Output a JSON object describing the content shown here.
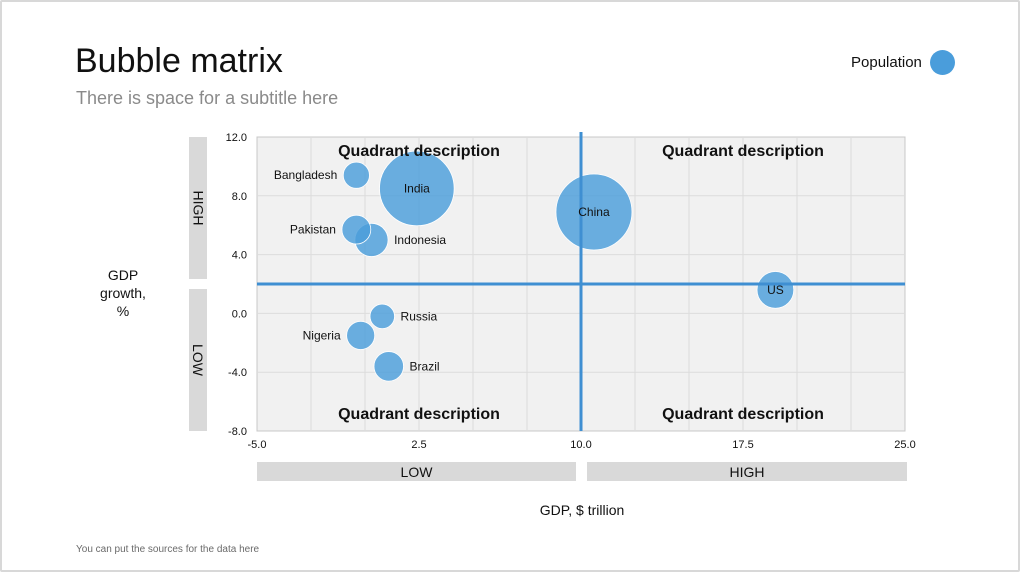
{
  "slide": {
    "title": "Bubble matrix",
    "subtitle": "There is space for a subtitle here",
    "source_note": "You can put the sources for the data here"
  },
  "legend": {
    "label": "Population",
    "color": "#4a9ddb"
  },
  "bands": {
    "y_high": "HIGH",
    "y_low": "LOW",
    "x_low": "LOW",
    "x_high": "HIGH"
  },
  "chart_data": {
    "type": "scatter",
    "subtype": "bubble",
    "title": "Bubble matrix",
    "subtitle": "There is space for a subtitle here",
    "xlabel": "GDP, $ trillion",
    "ylabel": "GDP\ngrowth,\n%",
    "xlim": [
      -5.0,
      25.0
    ],
    "ylim": [
      -8.0,
      12.0
    ],
    "x_ticks": [
      "-5.0",
      "2.5",
      "10.0",
      "17.5",
      "25.0"
    ],
    "y_ticks": [
      "12.0",
      "8.0",
      "4.0",
      "0.0",
      "-4.0",
      "-8.0"
    ],
    "x_tick_values": [
      -5.0,
      2.5,
      10.0,
      17.5,
      25.0
    ],
    "y_tick_values": [
      12.0,
      8.0,
      4.0,
      0.0,
      -4.0,
      -8.0
    ],
    "grid": true,
    "legend_position": "top-right",
    "bubble_color": "#4a9ddb",
    "divider_color": "#3f8fd2",
    "quadrant_split": {
      "x": 10.0,
      "y": 2.0
    },
    "quadrant_labels": [
      "Quadrant description",
      "Quadrant description",
      "Quadrant description",
      "Quadrant description"
    ],
    "series": [
      {
        "name": "Population",
        "points": [
          {
            "label": "Bangladesh",
            "x": -0.4,
            "y": 9.4,
            "size": 165,
            "label_pos": "left"
          },
          {
            "label": "India",
            "x": 2.4,
            "y": 8.5,
            "size": 1340,
            "label_pos": "center"
          },
          {
            "label": "Pakistan",
            "x": -0.4,
            "y": 5.7,
            "size": 200,
            "label_pos": "left"
          },
          {
            "label": "Indonesia",
            "x": 0.3,
            "y": 5.0,
            "size": 265,
            "label_pos": "right"
          },
          {
            "label": "China",
            "x": 10.6,
            "y": 6.9,
            "size": 1390,
            "label_pos": "center"
          },
          {
            "label": "US",
            "x": 19.0,
            "y": 1.6,
            "size": 325,
            "label_pos": "center"
          },
          {
            "label": "Russia",
            "x": 0.8,
            "y": -0.2,
            "size": 145,
            "label_pos": "right"
          },
          {
            "label": "Nigeria",
            "x": -0.2,
            "y": -1.5,
            "size": 190,
            "label_pos": "left"
          },
          {
            "label": "Brazil",
            "x": 1.1,
            "y": -3.6,
            "size": 210,
            "label_pos": "right"
          }
        ]
      }
    ]
  }
}
